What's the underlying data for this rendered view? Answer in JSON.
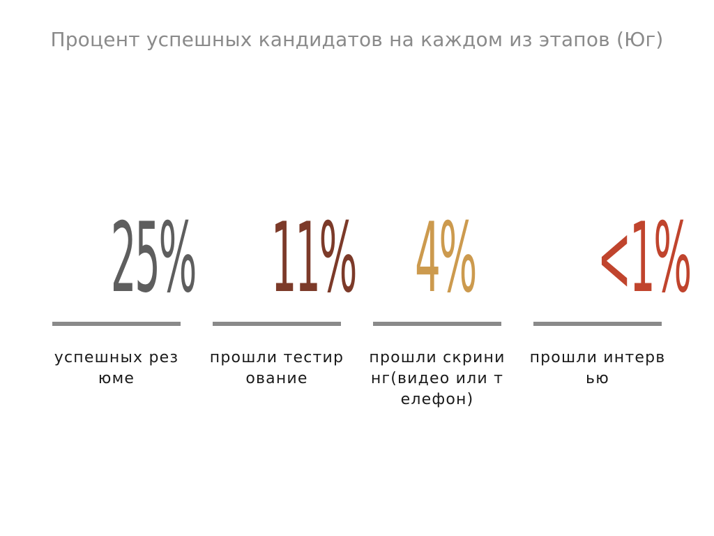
{
  "chart_data": {
    "type": "table",
    "title": "Процент успешных кандидатов на каждом из этапов (Юг)",
    "categories": [
      "успешных резюме",
      "прошли тестирование",
      "прошли скрининг(видео или телефон)",
      "прошли интервью"
    ],
    "values": [
      25,
      11,
      4,
      1
    ],
    "value_labels": [
      "25%",
      "11%",
      "4%",
      "<1%"
    ],
    "colors": [
      "#5e5e5e",
      "#7c3a29",
      "#cc9a4e",
      "#c0442d"
    ]
  },
  "stats": [
    {
      "value": "25%",
      "label": "успешных резюме",
      "color": "#5e5e5e"
    },
    {
      "value": "11%",
      "label": "прошли тестирование",
      "color": "#7c3a29"
    },
    {
      "value": "4%",
      "label": "прошли скрининг(видео или телефон)",
      "color": "#cc9a4e"
    },
    {
      "value": "<1%",
      "label": "прошли интервью",
      "color": "#c0442d"
    }
  ],
  "divider_color": "#8a8a8a"
}
